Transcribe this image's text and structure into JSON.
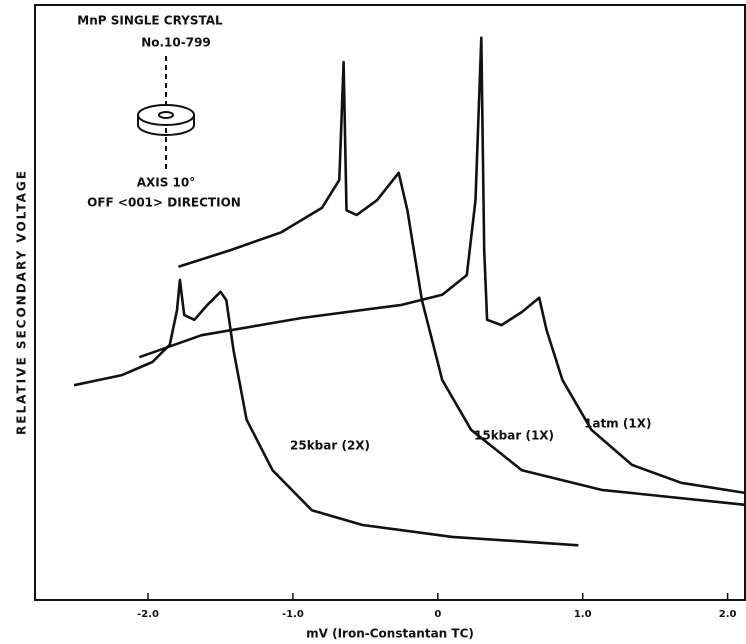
{
  "chart_data": {
    "type": "line",
    "xlabel": "mV (Iron-Constantan TC)",
    "ylabel": "RELATIVE SECONDARY VOLTAGE",
    "annotations": [
      "MnP SINGLE CRYSTAL",
      "No.10-799",
      "AXIS 10°",
      "OFF <001> DIRECTION"
    ],
    "xlim": [
      -2.78,
      2.12
    ],
    "ylim": [
      0,
      100
    ],
    "xticks": [
      {
        "value": -2,
        "label": "-2.0"
      },
      {
        "value": -1,
        "label": "-1.0"
      },
      0,
      {
        "value": 1,
        "label": "1.0"
      },
      {
        "value": 2,
        "label": "2.0"
      }
    ],
    "series": [
      {
        "name": "25kbar (2X)",
        "color": "#111111",
        "x": [
          -2.51,
          -2.18,
          -1.97,
          -1.85,
          -1.8,
          -1.78,
          -1.75,
          -1.68,
          -1.59,
          -1.5,
          -1.46,
          -1.41,
          -1.32,
          -1.14,
          -0.87,
          -0.52,
          0.1,
          0.97
        ],
        "values": [
          36.1,
          37.8,
          40.0,
          42.9,
          48.7,
          53.8,
          47.9,
          47.1,
          49.6,
          51.8,
          50.4,
          42.0,
          30.3,
          21.8,
          15.1,
          12.6,
          10.6,
          9.2
        ]
      },
      {
        "name": "15kbar (1X)",
        "color": "#111111",
        "x": [
          -1.79,
          -1.43,
          -1.08,
          -0.8,
          -0.68,
          -0.65,
          -0.63,
          -0.56,
          -0.42,
          -0.27,
          -0.21,
          -0.11,
          0.03,
          0.23,
          0.58,
          1.13,
          2.12
        ],
        "values": [
          56.0,
          58.8,
          61.8,
          65.9,
          70.6,
          90.4,
          65.5,
          64.7,
          67.2,
          71.8,
          65.5,
          50.4,
          37.0,
          28.6,
          21.8,
          18.5,
          16.0
        ]
      },
      {
        "name": "1atm (1X)",
        "color": "#111111",
        "x": [
          -2.06,
          -1.63,
          -0.94,
          -0.25,
          0.03,
          0.2,
          0.26,
          0.3,
          0.32,
          0.34,
          0.44,
          0.58,
          0.7,
          0.75,
          0.86,
          1.06,
          1.34,
          1.68,
          2.12
        ],
        "values": [
          40.8,
          44.5,
          47.4,
          49.6,
          51.3,
          54.6,
          67.2,
          94.5,
          58.8,
          47.1,
          46.2,
          48.4,
          50.8,
          45.4,
          37.0,
          28.6,
          22.7,
          19.7,
          18.0
        ]
      }
    ]
  }
}
